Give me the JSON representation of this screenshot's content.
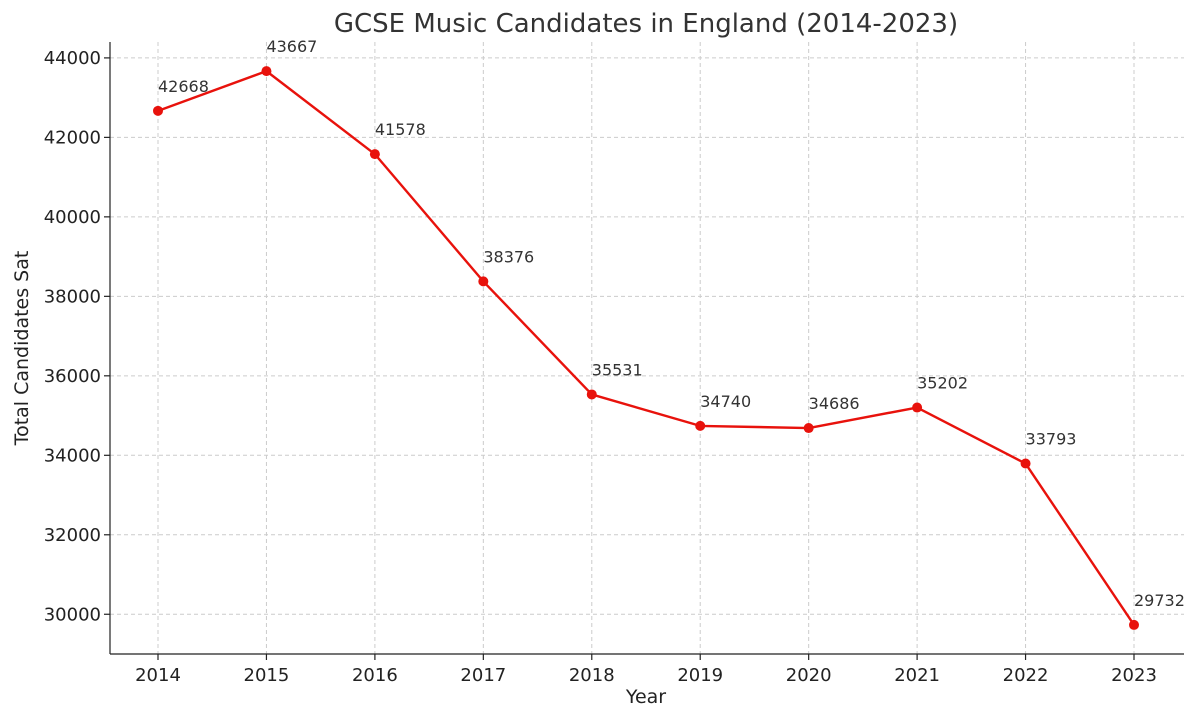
{
  "chart_data": {
    "type": "line",
    "title": "GCSE Music Candidates in England (2014-2023)",
    "xlabel": "Year",
    "ylabel": "Total Candidates Sat",
    "categories": [
      "2014",
      "2015",
      "2016",
      "2017",
      "2018",
      "2019",
      "2020",
      "2021",
      "2022",
      "2023"
    ],
    "series": [
      {
        "name": "Total Candidates Sat",
        "values": [
          42668,
          43667,
          41578,
          38376,
          35531,
          34740,
          34686,
          35202,
          33793,
          29732
        ],
        "color": "#e8120c"
      }
    ],
    "data_labels": [
      "42668",
      "43667",
      "41578",
      "38376",
      "35531",
      "34740",
      "34686",
      "35202",
      "33793",
      "29732"
    ],
    "ylim": [
      29000,
      44400
    ],
    "yticks": [
      30000,
      32000,
      34000,
      36000,
      38000,
      40000,
      42000,
      44000
    ],
    "ytick_labels": [
      "30000",
      "32000",
      "34000",
      "36000",
      "38000",
      "40000",
      "42000",
      "44000"
    ],
    "grid": true,
    "grid_color": "#cccccc",
    "line_color": "#e8120c"
  }
}
